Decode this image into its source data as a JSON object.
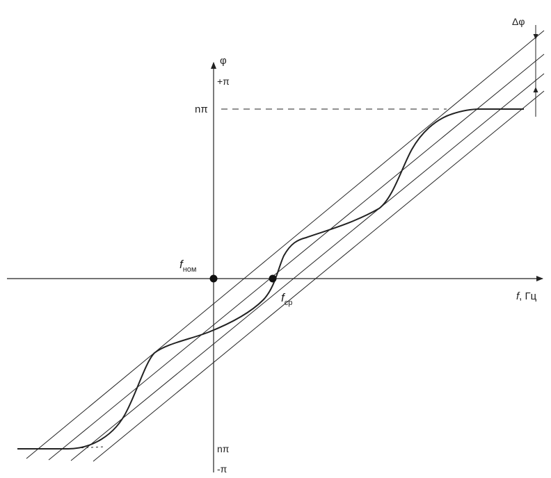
{
  "labels": {
    "y_axis": "φ",
    "plus_pi": "+π",
    "n_pi_top": "nπ",
    "n_pi_bottom": "nπ",
    "minus_pi": "-π",
    "f_nom_main": "f",
    "f_nom_sub": "ном",
    "f_cp_main": "f",
    "f_cp_sub": "ср",
    "x_axis_italic": "f",
    "x_axis_unit": ", Гц",
    "delta_phi": "Δφ"
  },
  "colors": {
    "line": "#222222",
    "background": "#ffffff"
  }
}
